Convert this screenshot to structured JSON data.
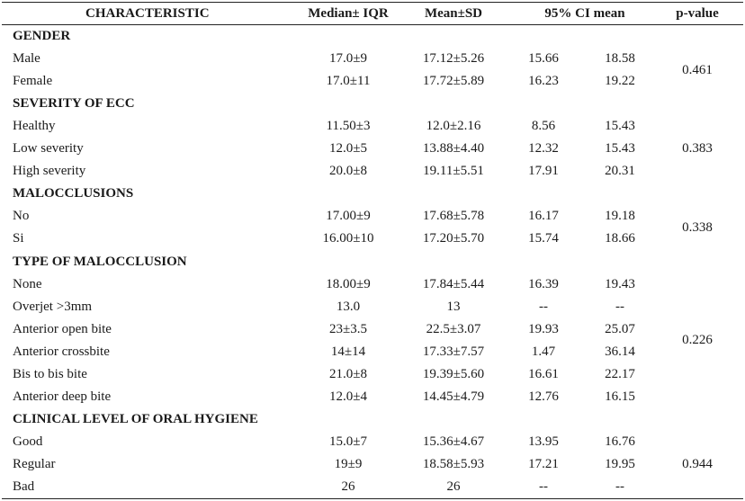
{
  "header": {
    "characteristic": "CHARACTERISTIC",
    "median": "Median± IQR",
    "mean": "Mean±SD",
    "ci": "95% CI mean",
    "pvalue": "p-value"
  },
  "sections": [
    {
      "title": "GENDER",
      "pvalue": "0.461",
      "rows": [
        {
          "label": "Male",
          "median": "17.0±9",
          "mean": "17.12±5.26",
          "ci_low": "15.66",
          "ci_high": "18.58"
        },
        {
          "label": "Female",
          "median": "17.0±11",
          "mean": "17.72±5.89",
          "ci_low": "16.23",
          "ci_high": "19.22"
        }
      ]
    },
    {
      "title": "SEVERITY OF ECC",
      "pvalue": "0.383",
      "rows": [
        {
          "label": "Healthy",
          "median": "11.50±3",
          "mean": "12.0±2.16",
          "ci_low": "8.56",
          "ci_high": "15.43"
        },
        {
          "label": "Low severity",
          "median": "12.0±5",
          "mean": "13.88±4.40",
          "ci_low": "12.32",
          "ci_high": "15.43"
        },
        {
          "label": "High severity",
          "median": "20.0±8",
          "mean": "19.11±5.51",
          "ci_low": "17.91",
          "ci_high": "20.31"
        }
      ]
    },
    {
      "title": "MALOCCLUSIONS",
      "pvalue": "0.338",
      "rows": [
        {
          "label": "No",
          "median": "17.00±9",
          "mean": "17.68±5.78",
          "ci_low": "16.17",
          "ci_high": "19.18"
        },
        {
          "label": "Si",
          "median": "16.00±10",
          "mean": "17.20±5.70",
          "ci_low": "15.74",
          "ci_high": "18.66"
        }
      ]
    },
    {
      "title": "TYPE OF MALOCCLUSION",
      "pvalue": "0.226",
      "rows": [
        {
          "label": "None",
          "median": "18.00±9",
          "mean": "17.84±5.44",
          "ci_low": "16.39",
          "ci_high": "19.43"
        },
        {
          "label": "Overjet >3mm",
          "median": "13.0",
          "mean": "13",
          "ci_low": "--",
          "ci_high": "--"
        },
        {
          "label": "Anterior open bite",
          "median": "23±3.5",
          "mean": "22.5±3.07",
          "ci_low": "19.93",
          "ci_high": "25.07"
        },
        {
          "label": "Anterior crossbite",
          "median": "14±14",
          "mean": "17.33±7.57",
          "ci_low": "1.47",
          "ci_high": "36.14"
        },
        {
          "label": "Bis to bis bite",
          "median": "21.0±8",
          "mean": "19.39±5.60",
          "ci_low": "16.61",
          "ci_high": "22.17"
        },
        {
          "label": "Anterior deep bite",
          "median": "12.0±4",
          "mean": "14.45±4.79",
          "ci_low": "12.76",
          "ci_high": "16.15"
        }
      ]
    },
    {
      "title": "CLINICAL LEVEL OF ORAL HYGIENE",
      "pvalue": "0.944",
      "rows": [
        {
          "label": "Good",
          "median": "15.0±7",
          "mean": "15.36±4.67",
          "ci_low": "13.95",
          "ci_high": "16.76"
        },
        {
          "label": "Regular",
          "median": "19±9",
          "mean": "18.58±5.93",
          "ci_low": "17.21",
          "ci_high": "19.95"
        },
        {
          "label": "Bad",
          "median": "26",
          "mean": "26",
          "ci_low": "--",
          "ci_high": "--"
        }
      ]
    }
  ]
}
